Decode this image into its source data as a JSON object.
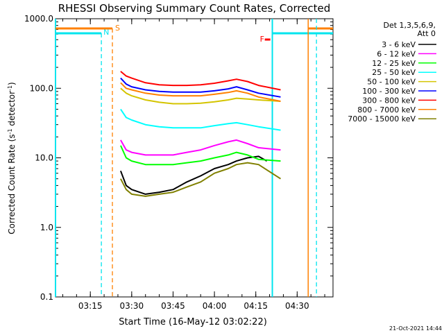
{
  "title": "RHESSI Observing Summary Count Rates, Corrected",
  "timestamp": "21-Oct-2021 14:44",
  "chart_data": {
    "type": "line",
    "title": "RHESSI Observing Summary Count Rates, Corrected",
    "xlabel": "Start Time (16-May-12 03:02:22)",
    "ylabel_main": "Corrected Count Rate (s",
    "ylabel_sup1": "-1",
    "ylabel_mid": " detector",
    "ylabel_sup2": "-1",
    "ylabel_end": ")",
    "y_scale": "log",
    "ylim": [
      0.1,
      1000
    ],
    "xlim": [
      "03:02:22",
      "04:43:00"
    ],
    "x_ticks": [
      "03:15",
      "03:30",
      "03:45",
      "04:00",
      "04:15",
      "04:30"
    ],
    "y_ticks": [
      "0.1",
      "1.0",
      "10.0",
      "100.0",
      "1000.0"
    ],
    "legend_header": [
      "Det 1,3,5,6,9,",
      "Att 0"
    ],
    "legend_placement": "right",
    "flags": {
      "saa": "S",
      "night": "N",
      "flare": "F"
    },
    "series": [
      {
        "name": "3 - 6 keV",
        "color": "#000000",
        "points": [
          [
            "03:26",
            6.5
          ],
          [
            "03:28",
            4.0
          ],
          [
            "03:30",
            3.5
          ],
          [
            "03:35",
            3.0
          ],
          [
            "03:40",
            3.2
          ],
          [
            "03:45",
            3.5
          ],
          [
            "03:50",
            4.5
          ],
          [
            "03:55",
            5.5
          ],
          [
            "04:00",
            7.0
          ],
          [
            "04:05",
            8.0
          ],
          [
            "04:08",
            9.0
          ],
          [
            "04:12",
            10.0
          ],
          [
            "04:16",
            10.5
          ],
          [
            "04:19",
            9.0
          ]
        ]
      },
      {
        "name": "6 - 12 keV",
        "color": "#ff00ff",
        "points": [
          [
            "03:26",
            18
          ],
          [
            "03:28",
            13
          ],
          [
            "03:30",
            12
          ],
          [
            "03:35",
            11
          ],
          [
            "03:40",
            11
          ],
          [
            "03:45",
            11
          ],
          [
            "03:50",
            12
          ],
          [
            "03:55",
            13
          ],
          [
            "04:00",
            15
          ],
          [
            "04:05",
            17
          ],
          [
            "04:08",
            18
          ],
          [
            "04:12",
            16
          ],
          [
            "04:16",
            14
          ],
          [
            "04:24",
            13
          ]
        ]
      },
      {
        "name": "12 - 25 keV",
        "color": "#00ff00",
        "points": [
          [
            "03:26",
            15
          ],
          [
            "03:28",
            10
          ],
          [
            "03:30",
            9
          ],
          [
            "03:35",
            8
          ],
          [
            "03:40",
            8
          ],
          [
            "03:45",
            8
          ],
          [
            "03:50",
            8.5
          ],
          [
            "03:55",
            9
          ],
          [
            "04:00",
            10
          ],
          [
            "04:05",
            11
          ],
          [
            "04:08",
            12
          ],
          [
            "04:12",
            11
          ],
          [
            "04:16",
            9.5
          ],
          [
            "04:24",
            9
          ]
        ]
      },
      {
        "name": "25 - 50 keV",
        "color": "#00ffff",
        "points": [
          [
            "03:26",
            50
          ],
          [
            "03:28",
            38
          ],
          [
            "03:30",
            35
          ],
          [
            "03:35",
            30
          ],
          [
            "03:40",
            28
          ],
          [
            "03:45",
            27
          ],
          [
            "03:50",
            27
          ],
          [
            "03:55",
            27
          ],
          [
            "04:00",
            29
          ],
          [
            "04:05",
            31
          ],
          [
            "04:08",
            32
          ],
          [
            "04:12",
            30
          ],
          [
            "04:16",
            28
          ],
          [
            "04:24",
            25
          ]
        ]
      },
      {
        "name": "50 - 100 keV",
        "color": "#d4c400",
        "points": [
          [
            "03:26",
            100
          ],
          [
            "03:28",
            85
          ],
          [
            "03:30",
            78
          ],
          [
            "03:35",
            68
          ],
          [
            "03:40",
            63
          ],
          [
            "03:45",
            60
          ],
          [
            "03:50",
            60
          ],
          [
            "03:55",
            61
          ],
          [
            "04:00",
            64
          ],
          [
            "04:05",
            68
          ],
          [
            "04:08",
            72
          ],
          [
            "04:12",
            70
          ],
          [
            "04:16",
            68
          ],
          [
            "04:24",
            65
          ]
        ]
      },
      {
        "name": "100 - 300 keV",
        "color": "#0000ff",
        "points": [
          [
            "03:26",
            140
          ],
          [
            "03:28",
            115
          ],
          [
            "03:30",
            105
          ],
          [
            "03:35",
            95
          ],
          [
            "03:40",
            90
          ],
          [
            "03:45",
            88
          ],
          [
            "03:50",
            88
          ],
          [
            "03:55",
            88
          ],
          [
            "04:00",
            92
          ],
          [
            "04:05",
            98
          ],
          [
            "04:08",
            105
          ],
          [
            "04:12",
            95
          ],
          [
            "04:16",
            85
          ],
          [
            "04:24",
            75
          ]
        ]
      },
      {
        "name": "300 - 800 keV",
        "color": "#ff0000",
        "points": [
          [
            "03:26",
            175
          ],
          [
            "03:28",
            150
          ],
          [
            "03:30",
            140
          ],
          [
            "03:35",
            120
          ],
          [
            "03:40",
            112
          ],
          [
            "03:45",
            110
          ],
          [
            "03:50",
            110
          ],
          [
            "03:55",
            112
          ],
          [
            "04:00",
            118
          ],
          [
            "04:05",
            128
          ],
          [
            "04:08",
            135
          ],
          [
            "04:12",
            125
          ],
          [
            "04:16",
            110
          ],
          [
            "04:24",
            95
          ]
        ]
      },
      {
        "name": "800 - 7000 keV",
        "color": "#ff8000",
        "points": [
          [
            "03:26",
            120
          ],
          [
            "03:28",
            100
          ],
          [
            "03:30",
            95
          ],
          [
            "03:35",
            85
          ],
          [
            "03:40",
            80
          ],
          [
            "03:45",
            78
          ],
          [
            "03:50",
            78
          ],
          [
            "03:55",
            78
          ],
          [
            "04:00",
            82
          ],
          [
            "04:05",
            87
          ],
          [
            "04:08",
            92
          ],
          [
            "04:12",
            85
          ],
          [
            "04:16",
            75
          ],
          [
            "04:24",
            65
          ]
        ]
      },
      {
        "name": "7000 - 15000 keV",
        "color": "#808000",
        "points": [
          [
            "03:26",
            5.0
          ],
          [
            "03:28",
            3.5
          ],
          [
            "03:30",
            3.0
          ],
          [
            "03:35",
            2.8
          ],
          [
            "03:40",
            3.0
          ],
          [
            "03:45",
            3.2
          ],
          [
            "03:50",
            3.8
          ],
          [
            "03:55",
            4.5
          ],
          [
            "04:00",
            6.0
          ],
          [
            "04:05",
            7.0
          ],
          [
            "04:08",
            8.0
          ],
          [
            "04:12",
            8.5
          ],
          [
            "04:16",
            8.0
          ],
          [
            "04:24",
            5.0
          ]
        ]
      }
    ]
  }
}
